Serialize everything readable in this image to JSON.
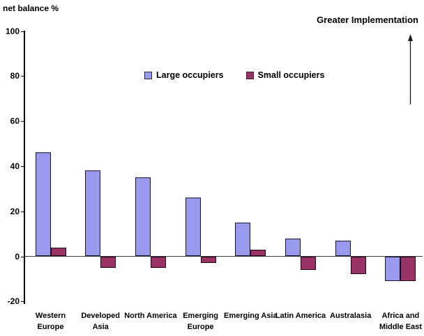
{
  "chart_data": {
    "type": "bar",
    "title": "",
    "ylabel": "net balance %",
    "xlabel": "",
    "categories": [
      "Western Europe",
      "Developed Asia",
      "North America",
      "Emerging Europe",
      "Emerging Asia",
      "Latin America",
      "Australasia",
      "Africa and Middle East"
    ],
    "categories_display": [
      "Western\nEurope",
      "Developed\nAsia",
      "North America",
      "Emerging\nEurope",
      "Emerging Asia",
      "Latin America",
      "Australasia",
      "Africa and\nMiddle East"
    ],
    "series": [
      {
        "name": "Large occupiers",
        "color": "#9999EE",
        "border_color": "#16162e",
        "values": [
          46,
          38,
          35,
          26,
          15,
          8,
          7,
          -11
        ]
      },
      {
        "name": "Small occupiers",
        "color": "#993366",
        "border_color": "#220011",
        "values": [
          4,
          -5,
          -5,
          -3,
          3,
          -6,
          -8,
          -11
        ]
      }
    ],
    "yticks": [
      "100",
      "80",
      "60",
      "40",
      "20",
      "0",
      "-20"
    ],
    "ytick_values": [
      100,
      80,
      60,
      40,
      20,
      0,
      -20
    ],
    "ylim": [
      -20,
      100
    ],
    "grid": false,
    "legend_position": "top-center",
    "annotation": {
      "label": "Greater Implementation",
      "arrow": "up"
    }
  }
}
